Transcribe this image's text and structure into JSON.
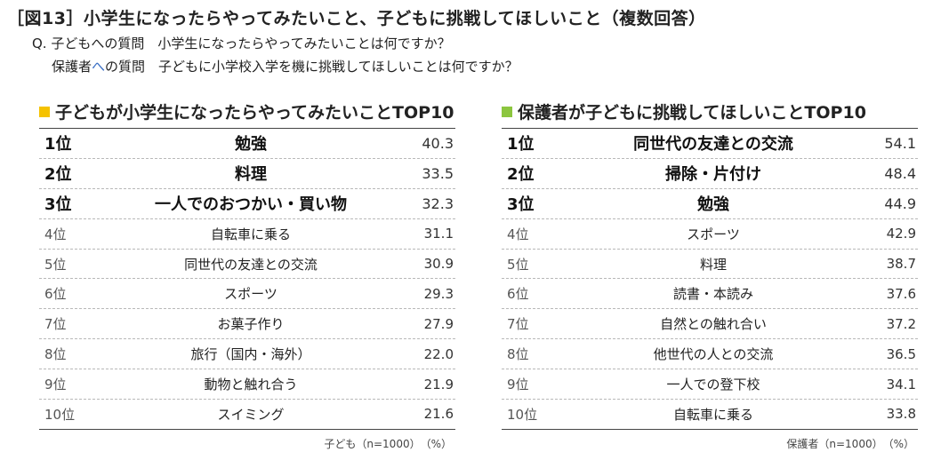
{
  "header": {
    "title": "［図13］小学生になったらやってみたいこと、子どもに挑戦してほしいこと（複数回答）",
    "question_child": "Q. 子どもへの質問　小学生になったらやってみたいことは何ですか？",
    "question_parent_prefix": "保護者",
    "question_parent_mark": "へ",
    "question_parent_rest": "の質問　子どもに小学校入学を機に挑戦してほしいことは何ですか？"
  },
  "colors": {
    "child_accent": "#f5c200",
    "parent_accent": "#8cc63f",
    "highlight_text": "#3a6fc4"
  },
  "child_panel": {
    "title": "子どもが小学生になったらやってみたいことTOP10",
    "rows": [
      {
        "rank": "1位",
        "item": "勉強",
        "value": "40.3"
      },
      {
        "rank": "2位",
        "item": "料理",
        "value": "33.5"
      },
      {
        "rank": "3位",
        "item": "一人でのおつかい・買い物",
        "value": "32.3"
      },
      {
        "rank": "4位",
        "item": "自転車に乗る",
        "value": "31.1"
      },
      {
        "rank": "5位",
        "item": "同世代の友達との交流",
        "value": "30.9"
      },
      {
        "rank": "6位",
        "item": "スポーツ",
        "value": "29.3"
      },
      {
        "rank": "7位",
        "item": "お菓子作り",
        "value": "27.9"
      },
      {
        "rank": "8位",
        "item": "旅行（国内・海外）",
        "value": "22.0"
      },
      {
        "rank": "9位",
        "item": "動物と触れ合う",
        "value": "21.9"
      },
      {
        "rank": "10位",
        "item": "スイミング",
        "value": "21.6"
      }
    ],
    "note": "子ども（n=1000）　（%）"
  },
  "parent_panel": {
    "title": "保護者が子どもに挑戦してほしいことTOP10",
    "rows": [
      {
        "rank": "1位",
        "item": "同世代の友達との交流",
        "value": "54.1"
      },
      {
        "rank": "2位",
        "item": "掃除・片付け",
        "value": "48.4"
      },
      {
        "rank": "3位",
        "item": "勉強",
        "value": "44.9"
      },
      {
        "rank": "4位",
        "item": "スポーツ",
        "value": "42.9"
      },
      {
        "rank": "5位",
        "item": "料理",
        "value": "38.7"
      },
      {
        "rank": "6位",
        "item": "読書・本読み",
        "value": "37.6"
      },
      {
        "rank": "7位",
        "item": "自然との触れ合い",
        "value": "37.2"
      },
      {
        "rank": "8位",
        "item": "他世代の人との交流",
        "value": "36.5"
      },
      {
        "rank": "9位",
        "item": "一人での登下校",
        "value": "34.1"
      },
      {
        "rank": "10位",
        "item": "自転車に乗る",
        "value": "33.8"
      }
    ],
    "note": "保護者（n=1000）　（%）"
  }
}
